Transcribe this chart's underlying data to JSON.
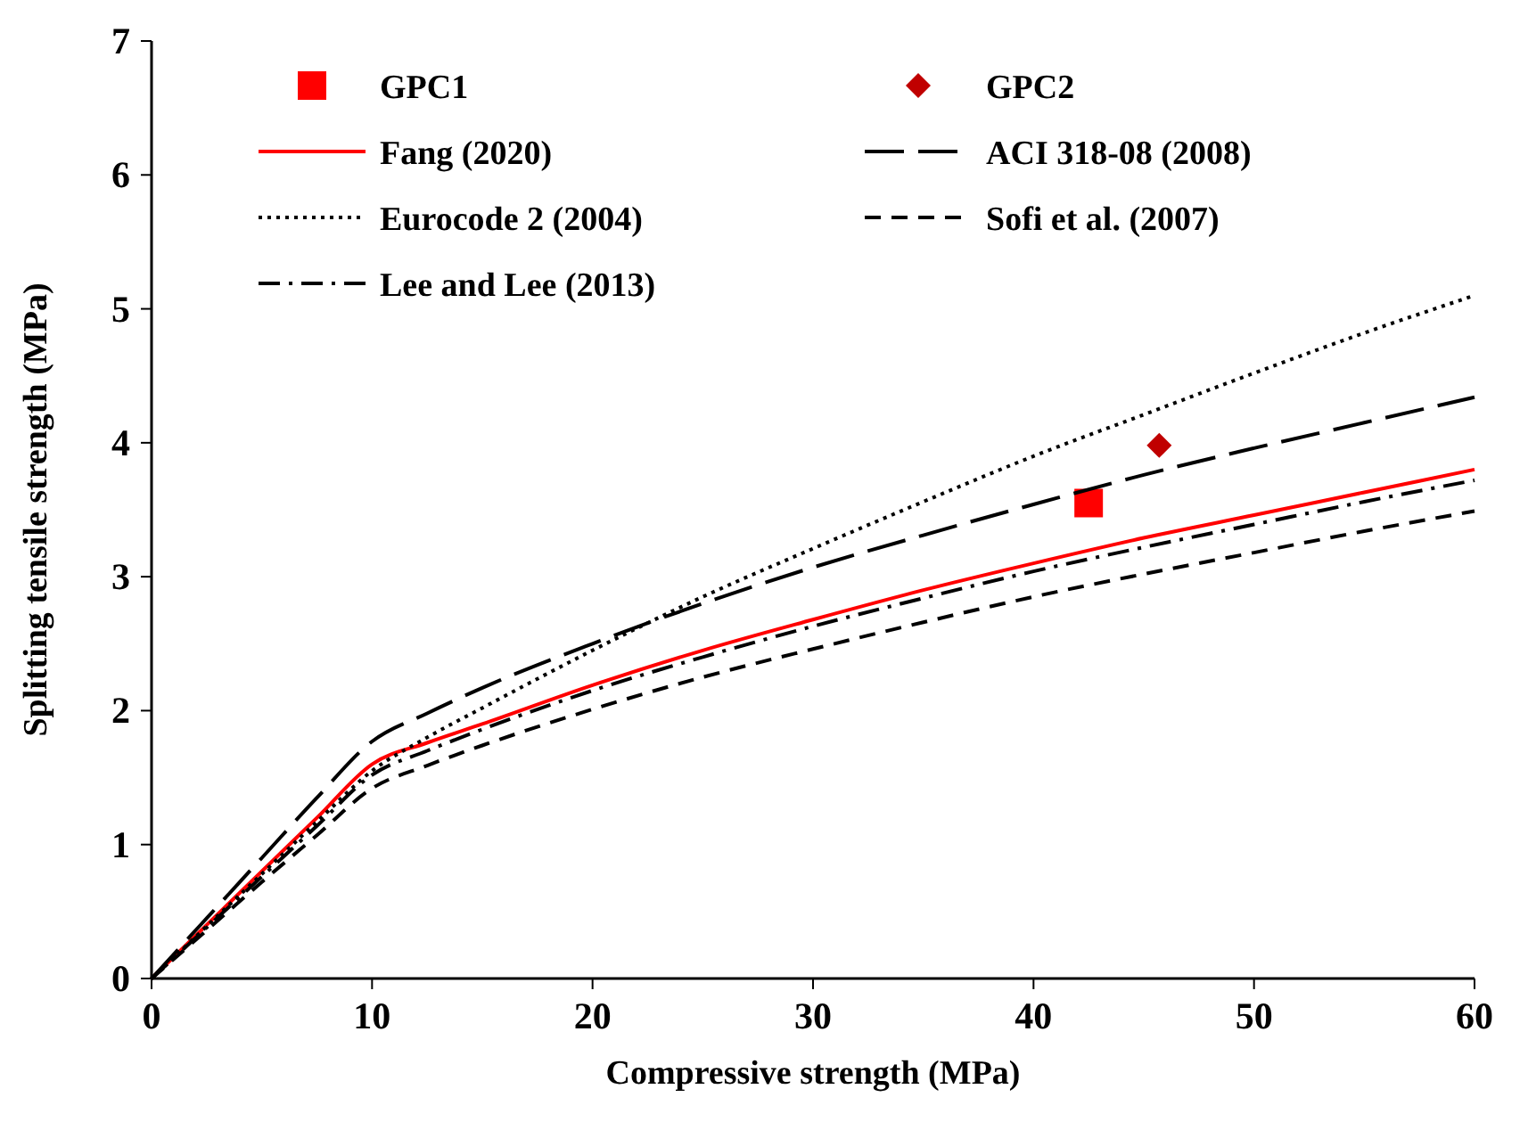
{
  "chart_data": {
    "type": "line",
    "xlabel": "Compressive strength (MPa)",
    "ylabel": "Splitting tensile strength (MPa)",
    "xlim": [
      0,
      60
    ],
    "xticks": [
      0,
      10,
      20,
      30,
      40,
      50,
      60
    ],
    "ylim": [
      0,
      7
    ],
    "yticks": [
      0,
      1,
      2,
      3,
      4,
      5,
      6,
      7
    ],
    "grid": false,
    "legend": "top",
    "x": [
      0,
      2.5,
      5,
      7.5,
      10,
      12.5,
      15,
      20,
      25,
      30,
      35,
      40,
      45,
      50,
      55,
      60
    ],
    "series": [
      {
        "name": "GPC1",
        "type": "scatter",
        "marker": "square",
        "color": "#ff0000",
        "x": [
          42.5
        ],
        "values": [
          3.55
        ]
      },
      {
        "name": "GPC2",
        "type": "scatter",
        "marker": "diamond",
        "color": "#c00000",
        "x": [
          45.7
        ],
        "values": [
          3.98
        ]
      },
      {
        "name": "Fang (2020)",
        "color": "#ff0000",
        "line_style": "solid",
        "values": [
          0,
          0.4,
          0.8,
          1.2,
          1.6,
          1.76,
          1.9,
          2.19,
          2.45,
          2.68,
          2.9,
          3.1,
          3.29,
          3.46,
          3.63,
          3.8
        ]
      },
      {
        "name": "ACI 318-08 (2008)",
        "color": "#000000",
        "line_style": "longdash",
        "values": [
          0,
          0.45,
          0.9,
          1.35,
          1.77,
          1.98,
          2.17,
          2.5,
          2.8,
          3.07,
          3.31,
          3.54,
          3.76,
          3.96,
          4.15,
          4.34
        ]
      },
      {
        "name": "Eurocode 2 (2004)",
        "color": "#000000",
        "line_style": "dotted",
        "values": [
          0,
          0.39,
          0.78,
          1.17,
          1.55,
          1.8,
          2.02,
          2.45,
          2.85,
          3.21,
          3.56,
          3.9,
          4.21,
          4.52,
          4.82,
          5.1
        ]
      },
      {
        "name": "Sofi et al. (2007)",
        "color": "#000000",
        "line_style": "dashed",
        "values": [
          0,
          0.36,
          0.72,
          1.07,
          1.42,
          1.59,
          1.74,
          2.01,
          2.25,
          2.46,
          2.66,
          2.85,
          3.02,
          3.18,
          3.34,
          3.49
        ]
      },
      {
        "name": "Lee and Lee (2013)",
        "color": "#000000",
        "line_style": "dashdot",
        "values": [
          0,
          0.38,
          0.76,
          1.14,
          1.52,
          1.7,
          1.86,
          2.15,
          2.4,
          2.63,
          2.84,
          3.04,
          3.22,
          3.39,
          3.56,
          3.72
        ]
      }
    ]
  }
}
